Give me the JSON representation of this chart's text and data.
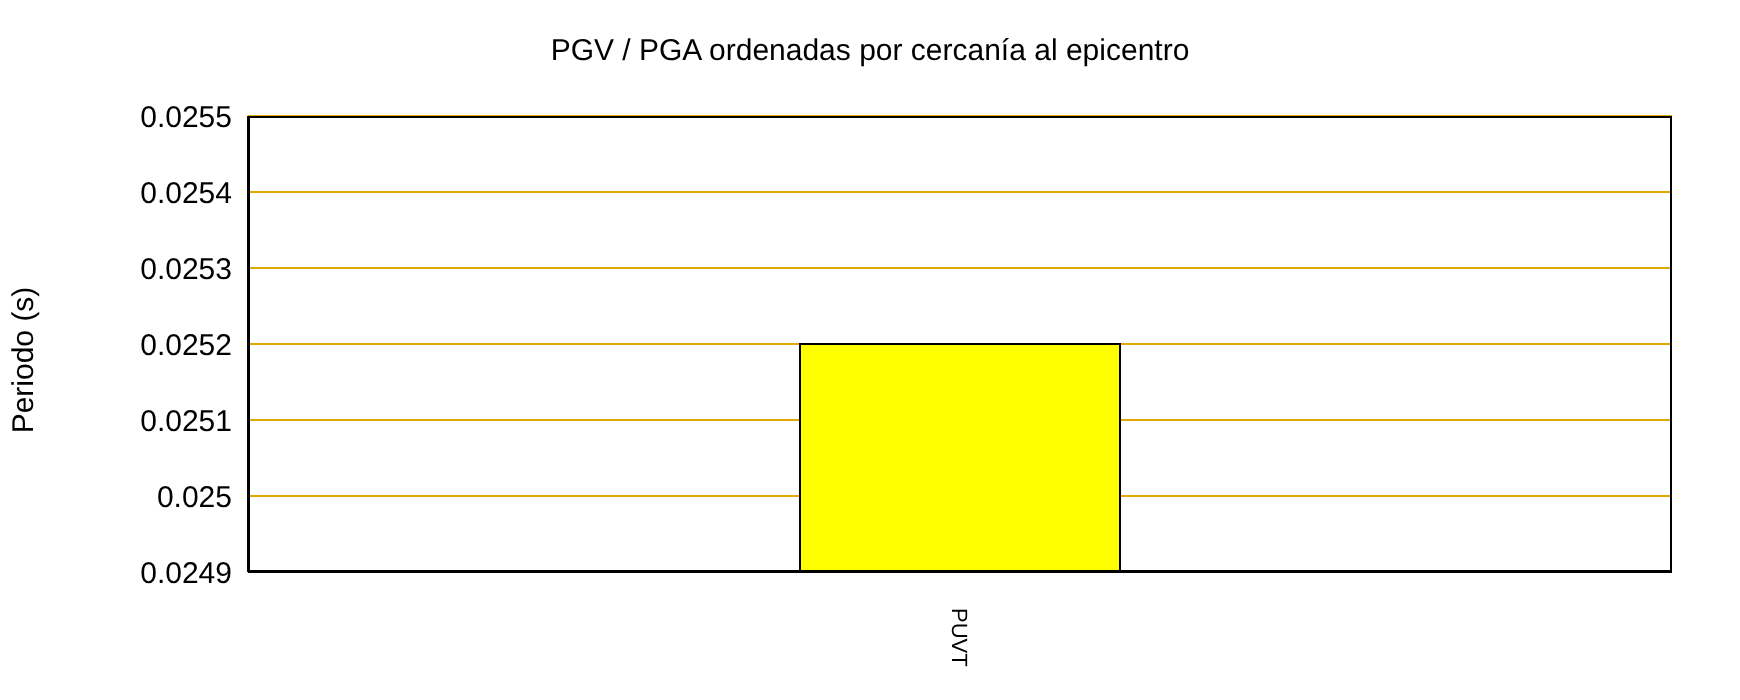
{
  "chart_data": {
    "type": "bar",
    "title": "PGV / PGA ordenadas por cercanía al epicentro",
    "ylabel": "Periodo (s)",
    "categories": [
      "PUVT"
    ],
    "values": [
      0.0252
    ],
    "color": "#ffff00",
    "ylim": [
      0.0249,
      0.0255
    ],
    "yticks": [
      0.0249,
      0.025,
      0.0251,
      0.0252,
      0.0253,
      0.0254,
      0.0255
    ],
    "grid": "y",
    "legend": false
  }
}
